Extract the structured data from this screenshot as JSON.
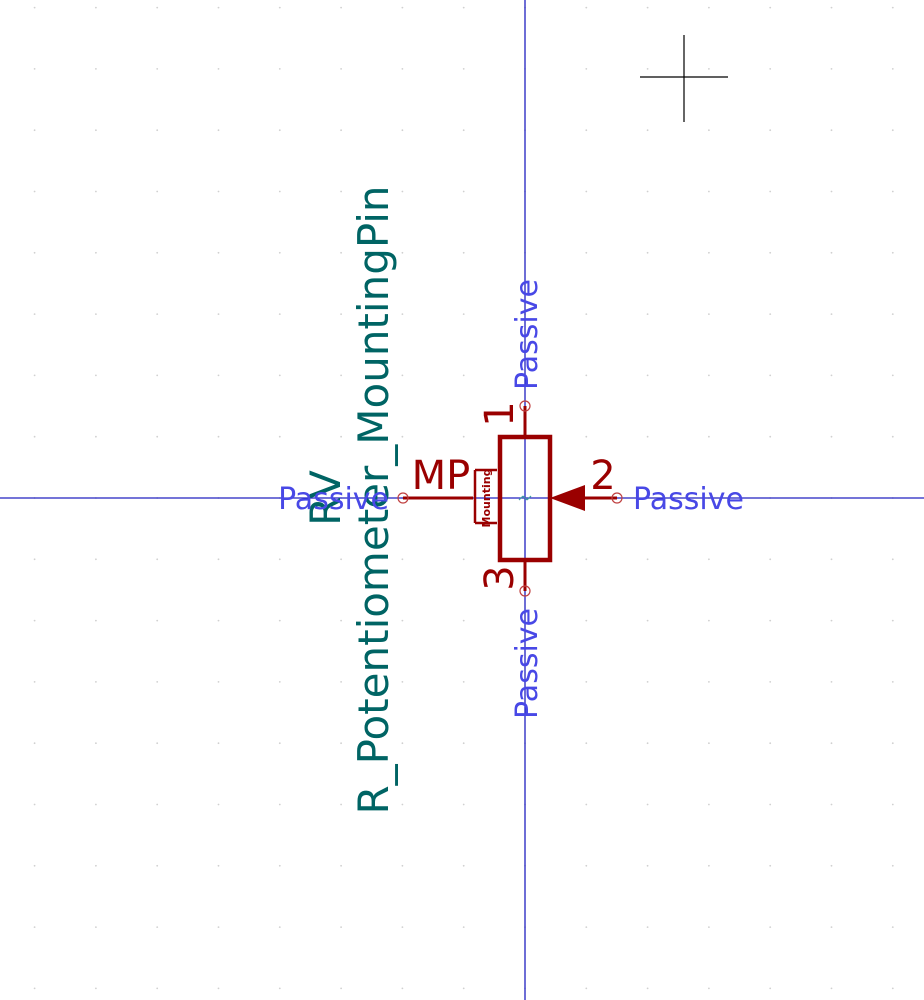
{
  "component": {
    "reference": "RV",
    "value": "R_Potentiometer_MountingPin",
    "body_label": "Mounting"
  },
  "pins": [
    {
      "number": "1",
      "electrical_type": "Passive"
    },
    {
      "number": "2",
      "electrical_type": "Passive"
    },
    {
      "number": "3",
      "electrical_type": "Passive"
    },
    {
      "number": "MP",
      "electrical_type": "Passive"
    }
  ],
  "colors": {
    "background": "#ffffff",
    "grid_dot": "#d0d0d0",
    "axis": "#2020c0",
    "body": "#9a0000",
    "pin_type_text": "#4848e6",
    "field_text": "#006464",
    "cursor": "#000000"
  },
  "icons": {
    "cursor": "crosshair-cursor-icon",
    "anchor": "anchor-marker-icon"
  }
}
